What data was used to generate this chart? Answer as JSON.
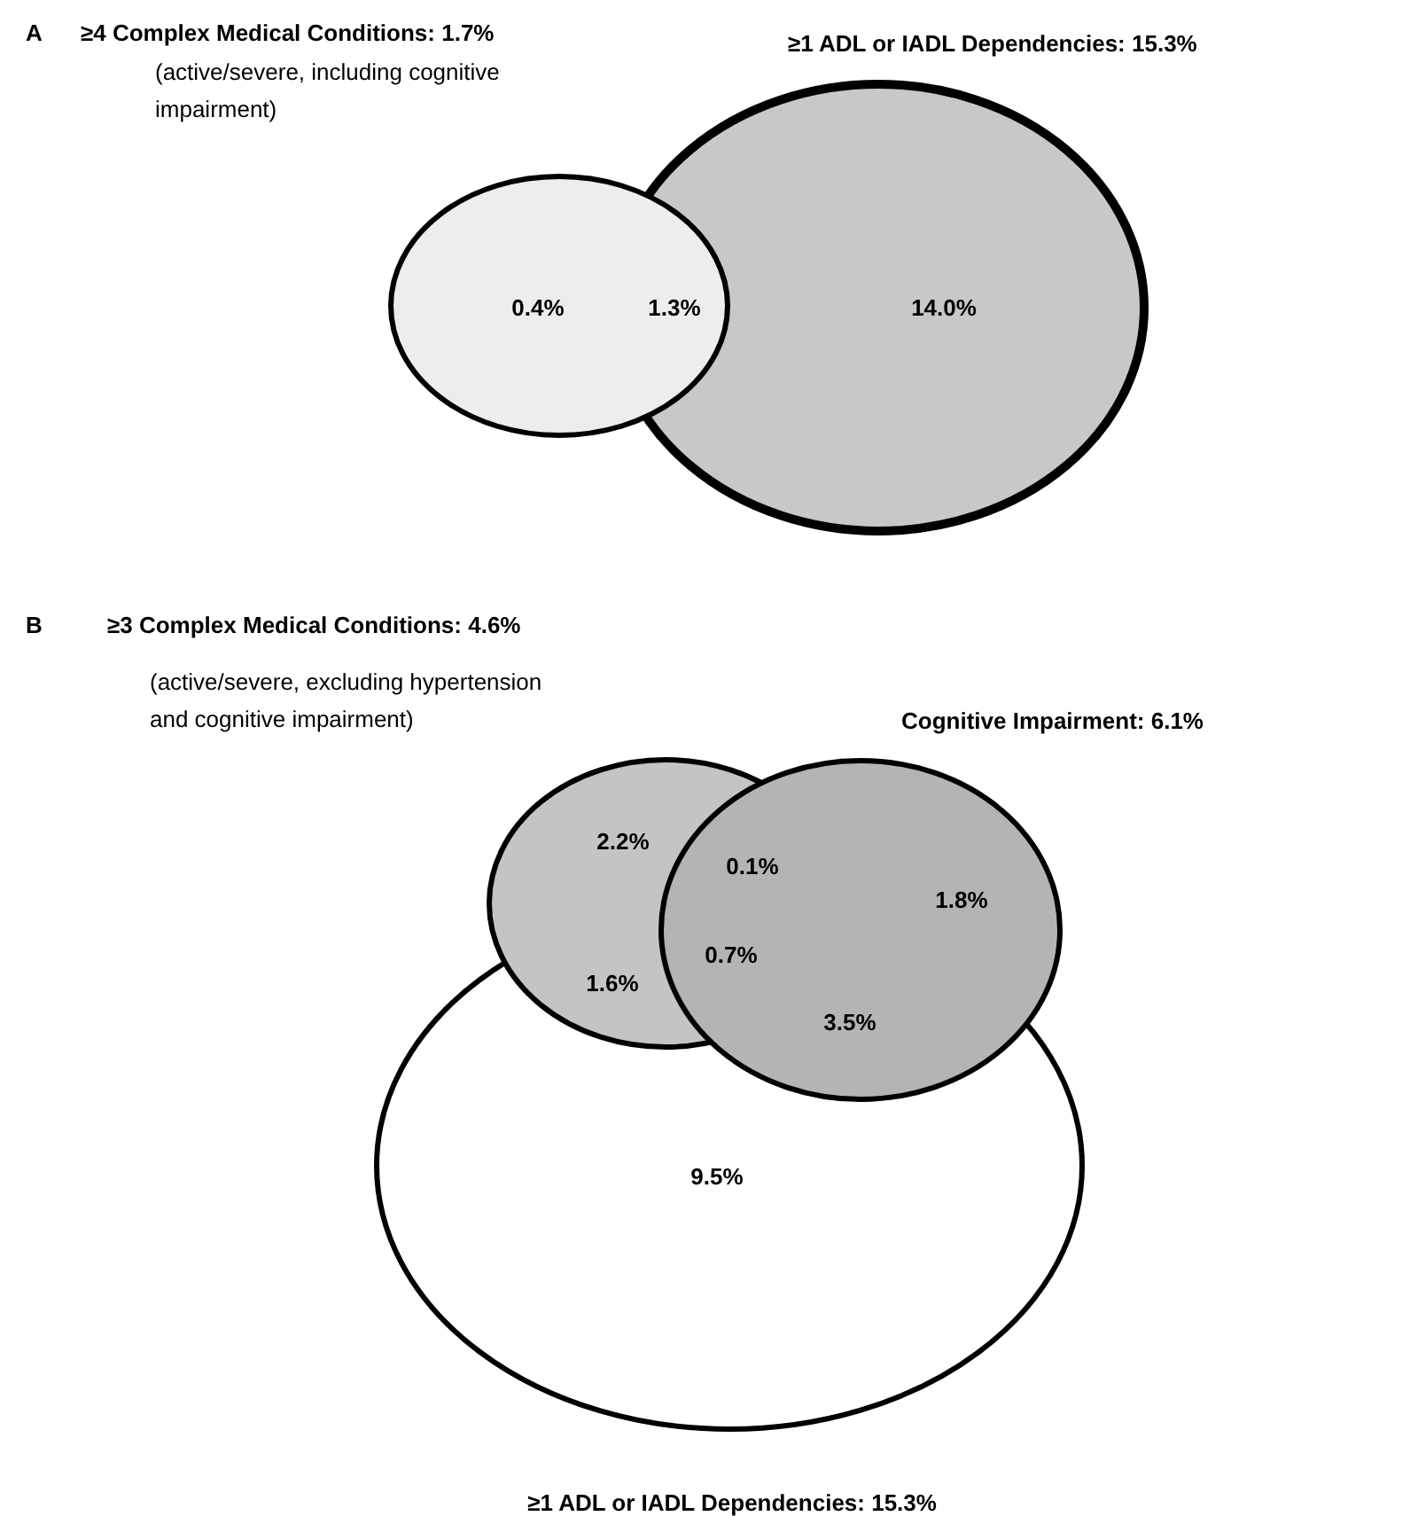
{
  "chart_data": [
    {
      "type": "other",
      "title": "A",
      "categories": [
        null,
        null,
        null
      ],
      "values": [
        0.4,
        1.3,
        14.0
      ],
      "value_labels": [
        "0.4%",
        "1.3%",
        "14.0%"
      ],
      "annotations": [
        "≥4 Complex Medical Conditions: 1.7%",
        "≥1 ADL or IADL Dependencies: 15.3%",
        "(active/severe, including cognitive impairment)"
      ]
    },
    {
      "type": "other",
      "title": "B",
      "categories": [
        null,
        null,
        null,
        null,
        null,
        null,
        null
      ],
      "values": [
        2.2,
        0.1,
        1.8,
        0.7,
        1.6,
        3.5,
        9.5
      ],
      "value_labels": [
        "2.2%",
        "0.1%",
        "1.8%",
        "0.7%",
        "1.6%",
        "3.5%",
        "9.5%"
      ],
      "annotations": [
        "≥3 Complex Medical Conditions: 4.6%",
        "Cognitive Impairment: 6.1%",
        "≥1 ADL or IADL Dependencies: 15.3%",
        "(active/severe, excluding hypertension and cognitive impairment)"
      ]
    }
  ]
}
